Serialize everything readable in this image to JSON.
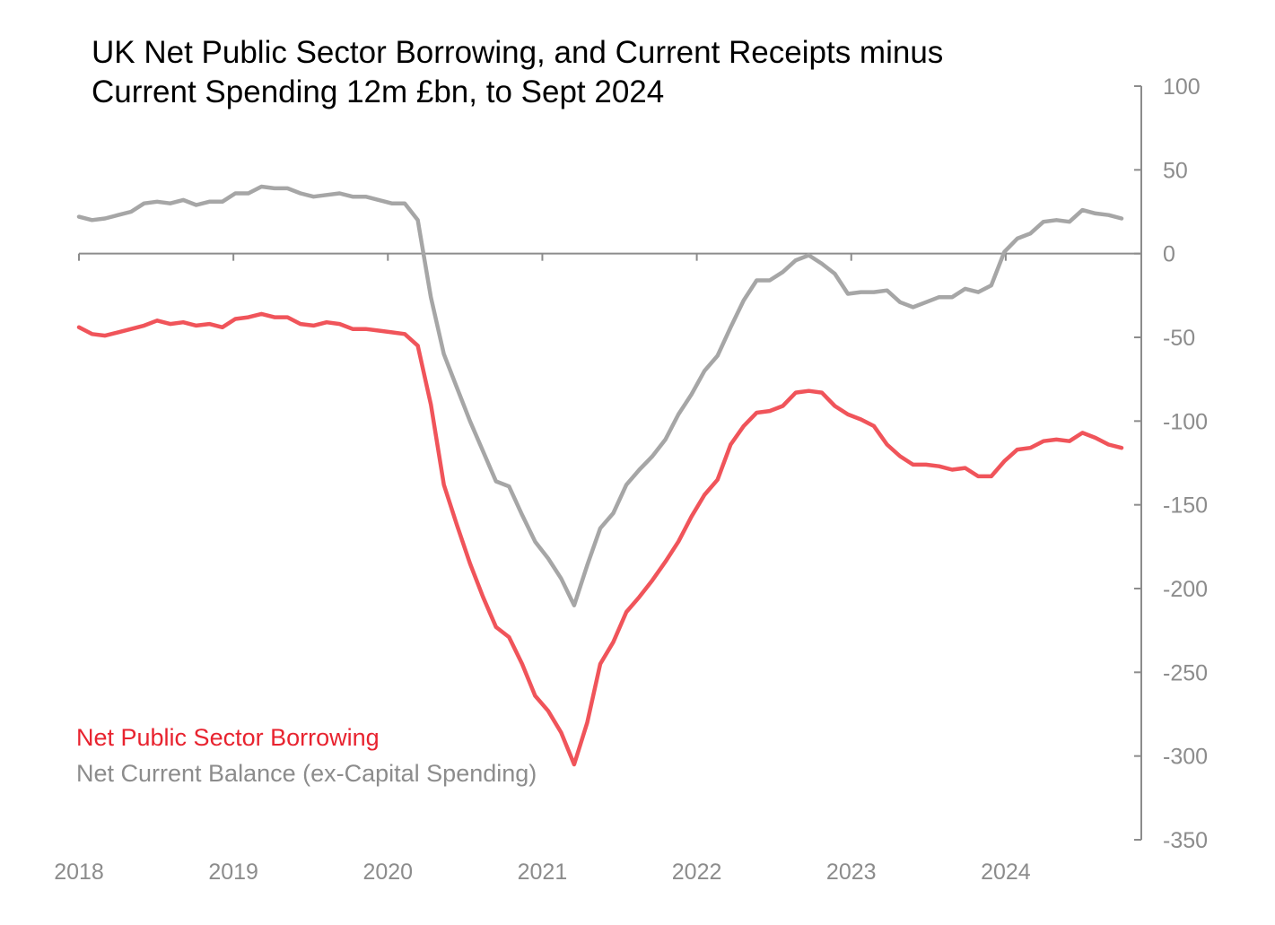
{
  "chart_data": {
    "type": "line",
    "title_lines": [
      "UK Net Public Sector Borrowing, and Current Receipts minus",
      "Current Spending 12m £bn, to Sept 2024"
    ],
    "xlabel": "",
    "ylabel": "",
    "x_range": [
      2018.0,
      2024.75
    ],
    "x_ticks": [
      "2018",
      "2019",
      "2020",
      "2021",
      "2022",
      "2023",
      "2024"
    ],
    "ylim": [
      -350,
      100
    ],
    "y_ticks": [
      "100",
      "50",
      "0",
      "-50",
      "-100",
      "-150",
      "-200",
      "-250",
      "-300",
      "-350"
    ],
    "y_axis_position": "right",
    "grid": false,
    "legend_position": "bottom-left",
    "start_month": "2018-01",
    "series": [
      {
        "name": "Net Public Sector Borrowing",
        "color": "#f0545a",
        "values": [
          -44,
          -48,
          -49,
          -47,
          -45,
          -43,
          -40,
          -42,
          -41,
          -43,
          -42,
          -44,
          -39,
          -38,
          -36,
          -38,
          -38,
          -42,
          -43,
          -41,
          -42,
          -45,
          -45,
          -46,
          -47,
          -48,
          -55,
          -90,
          -138,
          -162,
          -185,
          -205,
          -223,
          -229,
          -245,
          -264,
          -273,
          -286,
          -305,
          -280,
          -245,
          -232,
          -214,
          -205,
          -195,
          -184,
          -172,
          -157,
          -144,
          -135,
          -114,
          -103,
          -95,
          -94,
          -91,
          -83,
          -82,
          -83,
          -91,
          -96,
          -99,
          -103,
          -114,
          -121,
          -126,
          -126,
          -127,
          -129,
          -128,
          -133,
          -133,
          -124,
          -117,
          -116,
          -112,
          -111,
          -112,
          -107,
          -110,
          -114,
          -116
        ]
      },
      {
        "name": "Net Current Balance (ex-Capital Spending)",
        "color": "#a6a6a6",
        "values": [
          22,
          20,
          21,
          23,
          25,
          30,
          31,
          30,
          32,
          29,
          31,
          31,
          36,
          36,
          40,
          39,
          39,
          36,
          34,
          35,
          36,
          34,
          34,
          32,
          30,
          30,
          20,
          -26,
          -60,
          -80,
          -100,
          -118,
          -136,
          -139,
          -156,
          -172,
          -182,
          -194,
          -210,
          -186,
          -164,
          -155,
          -138,
          -129,
          -121,
          -111,
          -96,
          -84,
          -70,
          -61,
          -44,
          -28,
          -16,
          -16,
          -11,
          -4,
          -1,
          -6,
          -12,
          -24,
          -23,
          -23,
          -22,
          -29,
          -32,
          -29,
          -26,
          -26,
          -21,
          -23,
          -19,
          1,
          9,
          12,
          19,
          20,
          19,
          26,
          24,
          23,
          21
        ]
      }
    ]
  }
}
